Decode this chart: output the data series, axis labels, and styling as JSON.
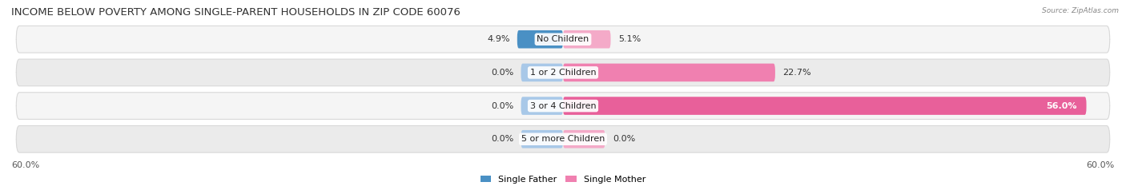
{
  "title": "INCOME BELOW POVERTY AMONG SINGLE-PARENT HOUSEHOLDS IN ZIP CODE 60076",
  "source": "Source: ZipAtlas.com",
  "categories": [
    "No Children",
    "1 or 2 Children",
    "3 or 4 Children",
    "5 or more Children"
  ],
  "father_values": [
    4.9,
    0.0,
    0.0,
    0.0
  ],
  "mother_values": [
    5.1,
    22.7,
    56.0,
    0.0
  ],
  "father_color_dark": "#4a90c4",
  "father_color_light": "#a8c8e8",
  "mother_color_dark": "#e8609a",
  "mother_color_light": "#f4aac8",
  "mother_color_mid": "#f080b0",
  "xlim": 60.0,
  "min_bar_width": 4.5,
  "axis_label_left": "60.0%",
  "axis_label_right": "60.0%",
  "legend_father": "Single Father",
  "legend_mother": "Single Mother",
  "title_fontsize": 9.5,
  "label_fontsize": 8,
  "tick_fontsize": 8,
  "value_fontsize": 8,
  "row_bg_light": "#f5f5f5",
  "row_bg_mid": "#ebebeb"
}
